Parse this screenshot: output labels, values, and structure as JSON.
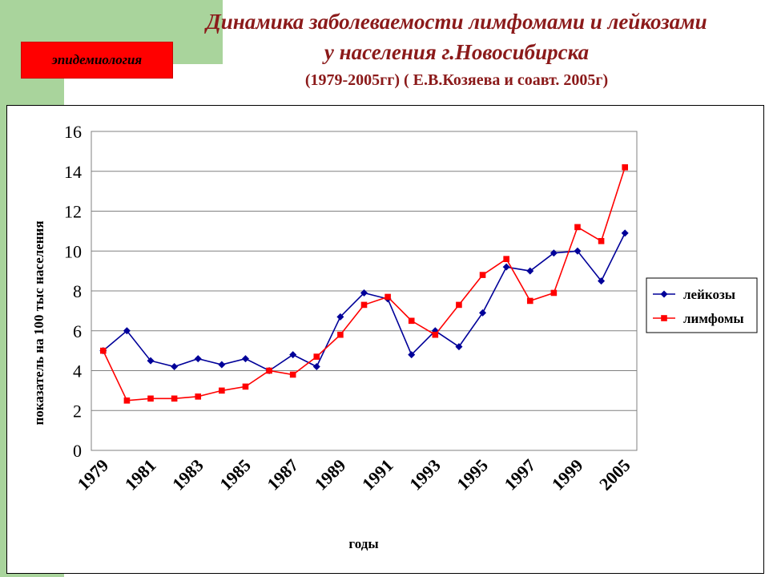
{
  "badge": "эпидемиология",
  "title": {
    "line1": "Динамика заболеваемости лимфомами и лейкозами",
    "line2": "у населения   г.Новосибирска",
    "subtitle": "(1979-2005гг)  ( Е.В.Козяева и соавт. 2005г)"
  },
  "colors": {
    "leukoses": "#000099",
    "lymphomas": "#ff0000",
    "background_green": "#a9d49c"
  },
  "chart_data": {
    "type": "line",
    "xlabel": "годы",
    "ylabel": "показатель на 100 тыс населения",
    "ylim": [
      0,
      16
    ],
    "yticks": [
      "0",
      "2",
      "4",
      "6",
      "8",
      "10",
      "12",
      "14",
      "16"
    ],
    "x_tick_labels": [
      "1979",
      "1981",
      "1983",
      "1985",
      "1987",
      "1989",
      "1991",
      "1993",
      "1995",
      "1997",
      "1999",
      "2005"
    ],
    "grid": true,
    "legend": "right",
    "series": [
      {
        "name": "лейкозы",
        "marker": "diamond",
        "values": [
          5.0,
          6.0,
          4.5,
          4.2,
          4.6,
          4.3,
          4.6,
          4.0,
          4.8,
          4.2,
          6.7,
          7.9,
          7.6,
          4.8,
          6.0,
          5.2,
          6.9,
          9.2,
          9.0,
          9.9,
          10.0,
          8.5,
          10.9
        ]
      },
      {
        "name": "лимфомы",
        "marker": "square",
        "values": [
          5.0,
          2.5,
          2.6,
          2.6,
          2.7,
          3.0,
          3.2,
          4.0,
          3.8,
          4.7,
          5.8,
          7.3,
          7.7,
          6.5,
          5.8,
          7.3,
          8.8,
          9.6,
          7.5,
          7.9,
          11.2,
          10.5,
          14.2
        ]
      }
    ]
  }
}
